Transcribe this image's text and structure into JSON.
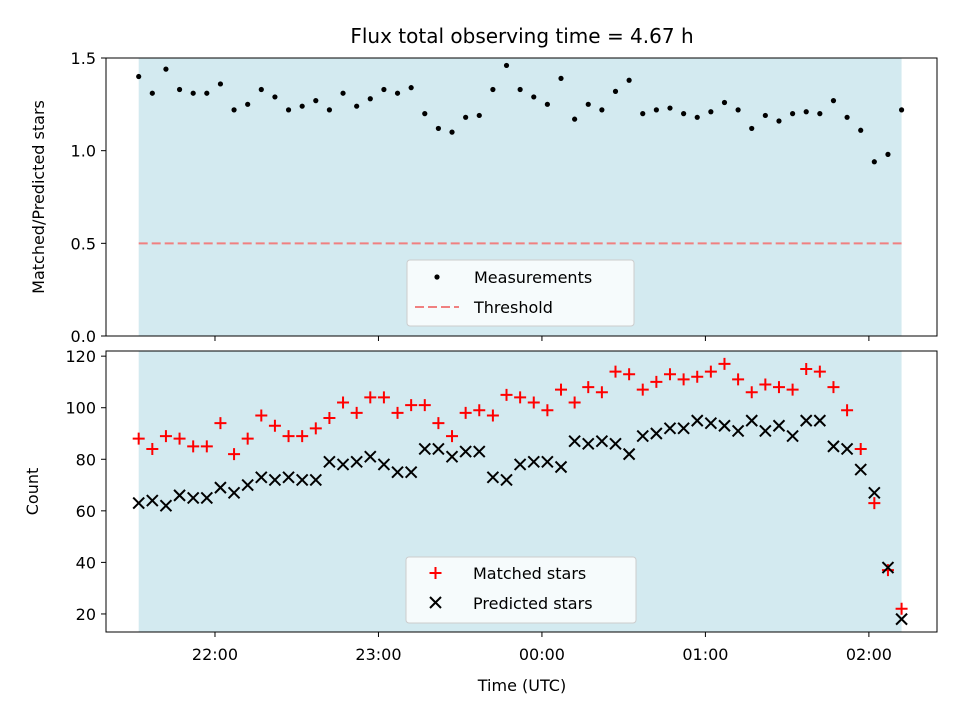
{
  "chart_data": [
    {
      "type": "scatter",
      "title": "Flux total observing time = 4.67 h",
      "xlabel": "",
      "ylabel": "Matched/Predicted stars",
      "xlim": [
        "21:20",
        "02:25"
      ],
      "ylim": [
        0,
        1.5
      ],
      "yticks": [
        "0.0",
        "0.5",
        "1.0",
        "1.5"
      ],
      "observing_window": [
        "21:32",
        "02:12"
      ],
      "threshold": 0.5,
      "legend_placement": "bottom-center",
      "series": [
        {
          "name": "Measurements",
          "marker": "dot",
          "color": "#000000",
          "points": [
            [
              "21:32",
              1.4
            ],
            [
              "21:37",
              1.31
            ],
            [
              "21:42",
              1.44
            ],
            [
              "21:47",
              1.33
            ],
            [
              "21:52",
              1.31
            ],
            [
              "21:57",
              1.31
            ],
            [
              "22:02",
              1.36
            ],
            [
              "22:07",
              1.22
            ],
            [
              "22:12",
              1.25
            ],
            [
              "22:17",
              1.33
            ],
            [
              "22:22",
              1.29
            ],
            [
              "22:27",
              1.22
            ],
            [
              "22:32",
              1.24
            ],
            [
              "22:37",
              1.27
            ],
            [
              "22:42",
              1.22
            ],
            [
              "22:47",
              1.31
            ],
            [
              "22:52",
              1.24
            ],
            [
              "22:57",
              1.28
            ],
            [
              "23:02",
              1.33
            ],
            [
              "23:07",
              1.31
            ],
            [
              "23:12",
              1.34
            ],
            [
              "23:17",
              1.2
            ],
            [
              "23:22",
              1.12
            ],
            [
              "23:27",
              1.1
            ],
            [
              "23:32",
              1.18
            ],
            [
              "23:37",
              1.19
            ],
            [
              "23:42",
              1.33
            ],
            [
              "23:47",
              1.46
            ],
            [
              "23:52",
              1.33
            ],
            [
              "23:57",
              1.29
            ],
            [
              "00:02",
              1.25
            ],
            [
              "00:07",
              1.39
            ],
            [
              "00:12",
              1.17
            ],
            [
              "00:17",
              1.25
            ],
            [
              "00:22",
              1.22
            ],
            [
              "00:27",
              1.32
            ],
            [
              "00:32",
              1.38
            ],
            [
              "00:37",
              1.2
            ],
            [
              "00:42",
              1.22
            ],
            [
              "00:47",
              1.23
            ],
            [
              "00:52",
              1.2
            ],
            [
              "00:57",
              1.18
            ],
            [
              "01:02",
              1.21
            ],
            [
              "01:07",
              1.26
            ],
            [
              "01:12",
              1.22
            ],
            [
              "01:17",
              1.12
            ],
            [
              "01:22",
              1.19
            ],
            [
              "01:27",
              1.16
            ],
            [
              "01:32",
              1.2
            ],
            [
              "01:37",
              1.21
            ],
            [
              "01:42",
              1.2
            ],
            [
              "01:47",
              1.27
            ],
            [
              "01:52",
              1.18
            ],
            [
              "01:57",
              1.11
            ],
            [
              "02:02",
              0.94
            ],
            [
              "02:07",
              0.98
            ],
            [
              "02:12",
              1.22
            ]
          ]
        }
      ],
      "reference_lines": [
        {
          "name": "Threshold",
          "y": 0.5,
          "style": "dashed",
          "color": "#f08080"
        }
      ]
    },
    {
      "type": "scatter",
      "title": "",
      "xlabel": "Time (UTC)",
      "ylabel": "Count",
      "xlim": [
        "21:20",
        "02:25"
      ],
      "ylim": [
        13,
        122
      ],
      "xticks": [
        "22:00",
        "23:00",
        "00:00",
        "01:00",
        "02:00"
      ],
      "yticks": [
        "20",
        "40",
        "60",
        "80",
        "100",
        "120"
      ],
      "observing_window": [
        "21:32",
        "02:12"
      ],
      "legend_placement": "bottom-center",
      "series": [
        {
          "name": "Matched stars",
          "marker": "plus",
          "color": "#ff0000",
          "points": [
            [
              "21:32",
              88
            ],
            [
              "21:37",
              84
            ],
            [
              "21:42",
              89
            ],
            [
              "21:47",
              88
            ],
            [
              "21:52",
              85
            ],
            [
              "21:57",
              85
            ],
            [
              "22:02",
              94
            ],
            [
              "22:07",
              82
            ],
            [
              "22:12",
              88
            ],
            [
              "22:17",
              97
            ],
            [
              "22:22",
              93
            ],
            [
              "22:27",
              89
            ],
            [
              "22:32",
              89
            ],
            [
              "22:37",
              92
            ],
            [
              "22:42",
              96
            ],
            [
              "22:47",
              102
            ],
            [
              "22:52",
              98
            ],
            [
              "22:57",
              104
            ],
            [
              "23:02",
              104
            ],
            [
              "23:07",
              98
            ],
            [
              "23:12",
              101
            ],
            [
              "23:17",
              101
            ],
            [
              "23:22",
              94
            ],
            [
              "23:27",
              89
            ],
            [
              "23:32",
              98
            ],
            [
              "23:37",
              99
            ],
            [
              "23:42",
              97
            ],
            [
              "23:47",
              105
            ],
            [
              "23:52",
              104
            ],
            [
              "23:57",
              102
            ],
            [
              "00:02",
              99
            ],
            [
              "00:07",
              107
            ],
            [
              "00:12",
              102
            ],
            [
              "00:17",
              108
            ],
            [
              "00:22",
              106
            ],
            [
              "00:27",
              114
            ],
            [
              "00:32",
              113
            ],
            [
              "00:37",
              107
            ],
            [
              "00:42",
              110
            ],
            [
              "00:47",
              113
            ],
            [
              "00:52",
              111
            ],
            [
              "00:57",
              112
            ],
            [
              "01:02",
              114
            ],
            [
              "01:07",
              117
            ],
            [
              "01:12",
              111
            ],
            [
              "01:17",
              106
            ],
            [
              "01:22",
              109
            ],
            [
              "01:27",
              108
            ],
            [
              "01:32",
              107
            ],
            [
              "01:37",
              115
            ],
            [
              "01:42",
              114
            ],
            [
              "01:47",
              108
            ],
            [
              "01:52",
              99
            ],
            [
              "01:57",
              84
            ],
            [
              "02:02",
              63
            ],
            [
              "02:07",
              37
            ],
            [
              "02:12",
              22
            ]
          ]
        },
        {
          "name": "Predicted stars",
          "marker": "x",
          "color": "#000000",
          "points": [
            [
              "21:32",
              63
            ],
            [
              "21:37",
              64
            ],
            [
              "21:42",
              62
            ],
            [
              "21:47",
              66
            ],
            [
              "21:52",
              65
            ],
            [
              "21:57",
              65
            ],
            [
              "22:02",
              69
            ],
            [
              "22:07",
              67
            ],
            [
              "22:12",
              70
            ],
            [
              "22:17",
              73
            ],
            [
              "22:22",
              72
            ],
            [
              "22:27",
              73
            ],
            [
              "22:32",
              72
            ],
            [
              "22:37",
              72
            ],
            [
              "22:42",
              79
            ],
            [
              "22:47",
              78
            ],
            [
              "22:52",
              79
            ],
            [
              "22:57",
              81
            ],
            [
              "23:02",
              78
            ],
            [
              "23:07",
              75
            ],
            [
              "23:12",
              75
            ],
            [
              "23:17",
              84
            ],
            [
              "23:22",
              84
            ],
            [
              "23:27",
              81
            ],
            [
              "23:32",
              83
            ],
            [
              "23:37",
              83
            ],
            [
              "23:42",
              73
            ],
            [
              "23:47",
              72
            ],
            [
              "23:52",
              78
            ],
            [
              "23:57",
              79
            ],
            [
              "00:02",
              79
            ],
            [
              "00:07",
              77
            ],
            [
              "00:12",
              87
            ],
            [
              "00:17",
              86
            ],
            [
              "00:22",
              87
            ],
            [
              "00:27",
              86
            ],
            [
              "00:32",
              82
            ],
            [
              "00:37",
              89
            ],
            [
              "00:42",
              90
            ],
            [
              "00:47",
              92
            ],
            [
              "00:52",
              92
            ],
            [
              "00:57",
              95
            ],
            [
              "01:02",
              94
            ],
            [
              "01:07",
              93
            ],
            [
              "01:12",
              91
            ],
            [
              "01:17",
              95
            ],
            [
              "01:22",
              91
            ],
            [
              "01:27",
              93
            ],
            [
              "01:32",
              89
            ],
            [
              "01:37",
              95
            ],
            [
              "01:42",
              95
            ],
            [
              "01:47",
              85
            ],
            [
              "01:52",
              84
            ],
            [
              "01:57",
              76
            ],
            [
              "02:02",
              67
            ],
            [
              "02:07",
              38
            ],
            [
              "02:12",
              18
            ]
          ]
        }
      ]
    }
  ]
}
